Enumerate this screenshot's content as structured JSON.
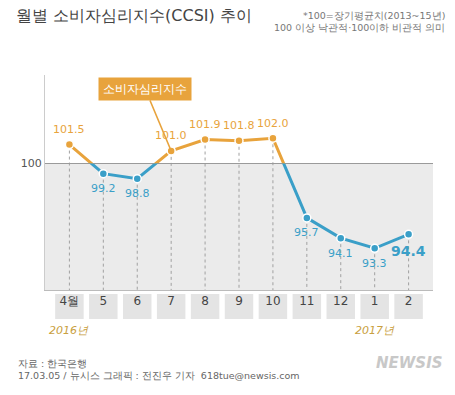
{
  "chart_data": {
    "type": "line",
    "title": "월별 소비자심리지수(CCSI) 추이",
    "subtitle": [
      "*100=장기평균치(2013~15년)",
      "100 이상 낙관적·100이하 비관적 의미"
    ],
    "categories": [
      "4월",
      "5",
      "6",
      "7",
      "8",
      "9",
      "10",
      "11",
      "12",
      "1",
      "2"
    ],
    "series": [
      {
        "name": "소비자심리지수",
        "values": [
          101.5,
          99.2,
          98.8,
          101.0,
          101.9,
          101.8,
          102.0,
          95.7,
          94.1,
          93.3,
          94.4
        ],
        "value_labels": [
          "101.5",
          "99.2",
          "98.8",
          "101.0",
          "101.9",
          "101.8",
          "102.0",
          "95.7",
          "94.1",
          "93.3",
          "94.4"
        ],
        "colors": [
          "#e8a33c",
          "#3a9fc8",
          "#3a9fc8",
          "#e8a33c",
          "#e8a33c",
          "#e8a33c",
          "#e8a33c",
          "#3a9fc8",
          "#3a9fc8",
          "#3a9fc8",
          "#3a9fc8"
        ]
      }
    ],
    "ylim": [
      90,
      107
    ],
    "yticks": [
      100
    ],
    "grid": true,
    "data_labels": true,
    "annotations": [
      {
        "category": "4월",
        "text": "2016년"
      },
      {
        "category": "1",
        "text": "2017년"
      }
    ],
    "source": [
      "자료 : 한국은행",
      "17.03.05 / 뉴시스 그래픽 : 전진우 기자  618tue@newsis.com"
    ],
    "watermark": "NEWSIS"
  }
}
